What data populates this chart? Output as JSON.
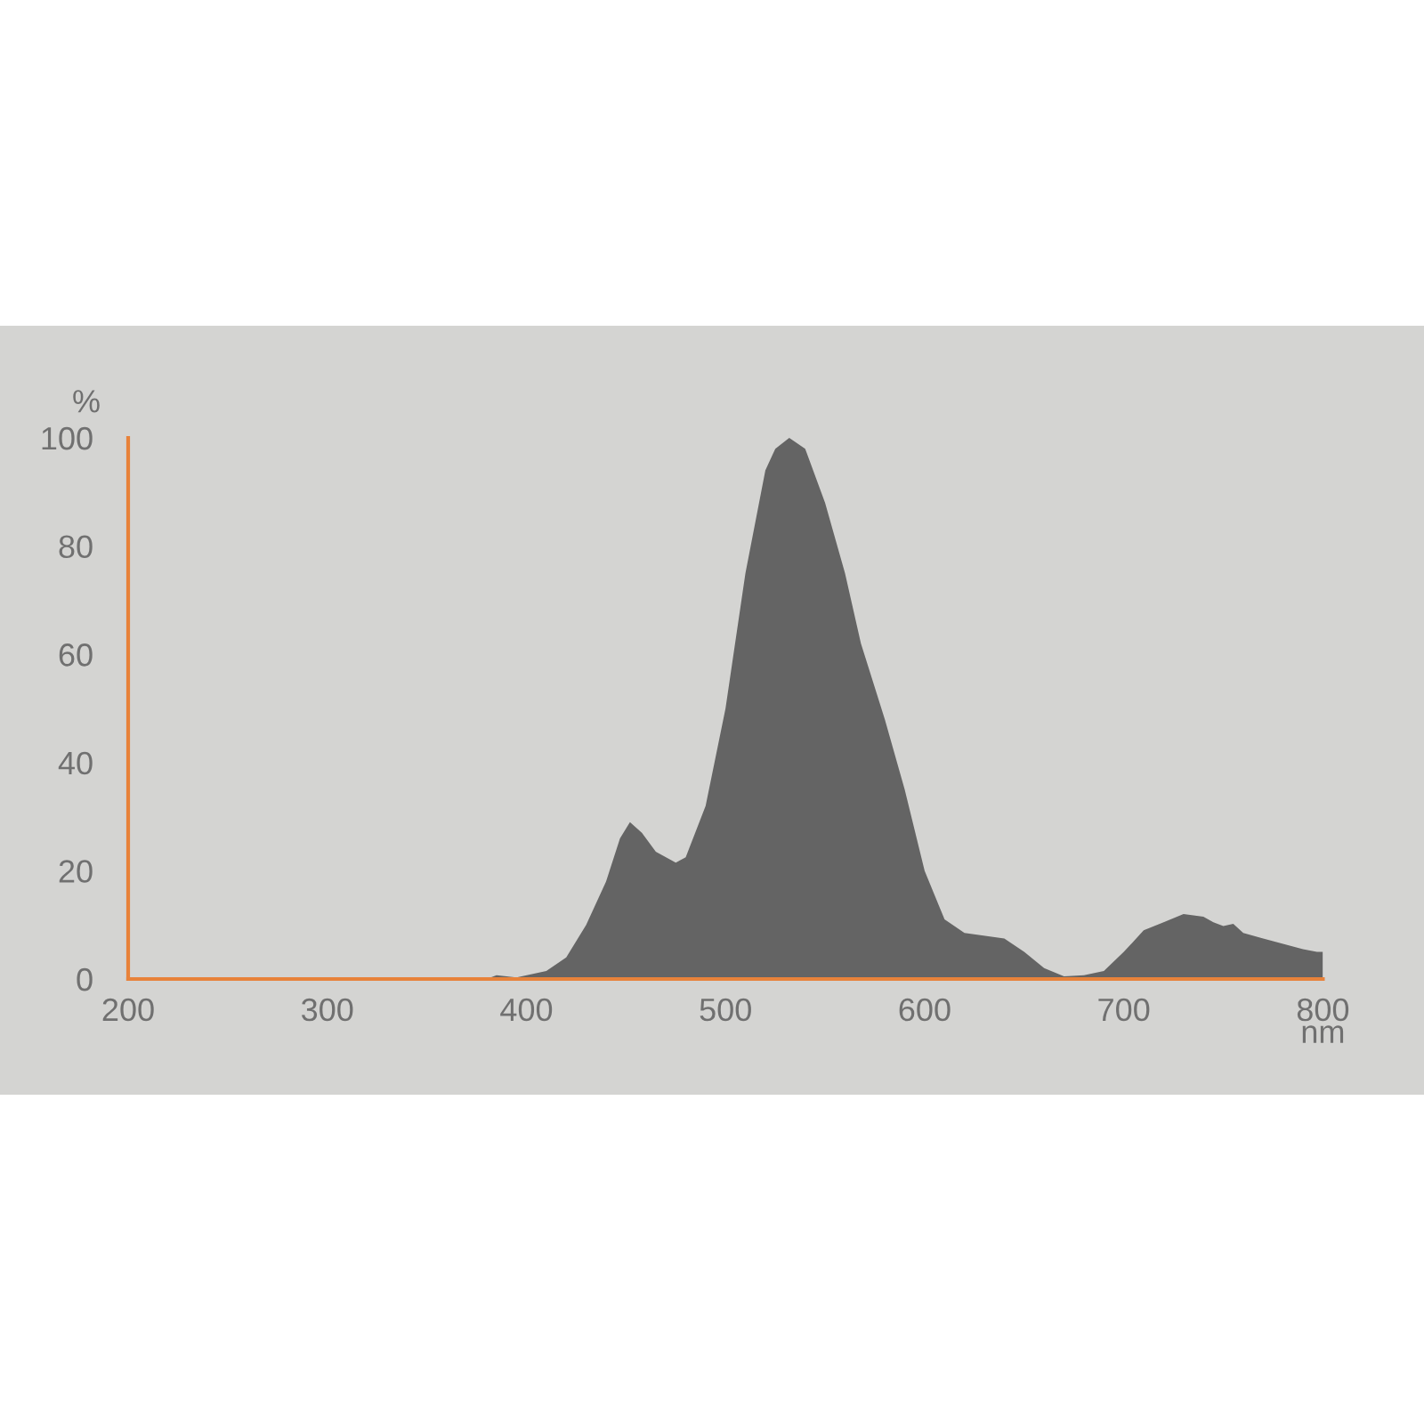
{
  "chart_data": {
    "type": "area",
    "xlabel": "nm",
    "ylabel": "%",
    "x": [
      380,
      385,
      395,
      410,
      420,
      430,
      440,
      447,
      452,
      458,
      465,
      475,
      480,
      490,
      500,
      510,
      520,
      525,
      532,
      540,
      550,
      560,
      568,
      580,
      590,
      600,
      610,
      620,
      640,
      650,
      660,
      670,
      680,
      690,
      700,
      710,
      720,
      730,
      740,
      745,
      750,
      755,
      760,
      770,
      780,
      790,
      797,
      800
    ],
    "series": [
      {
        "color": "#646464",
        "values": [
          0,
          0.7,
          0.3,
          1.5,
          4,
          10,
          18,
          26,
          29,
          27,
          23.5,
          21.5,
          22.5,
          32,
          50,
          75,
          94,
          98,
          100,
          98,
          88,
          75,
          62,
          48,
          35,
          20,
          11,
          8.5,
          7.5,
          5,
          2,
          0.5,
          0.7,
          1.5,
          5,
          9,
          10.5,
          12,
          11.5,
          10.5,
          9.8,
          10.2,
          8.5,
          7.5,
          6.5,
          5.5,
          5,
          5
        ]
      }
    ],
    "xlim": [
      200,
      800
    ],
    "ylim": [
      0,
      100
    ],
    "xticks": [
      200,
      300,
      400,
      500,
      600,
      700,
      800
    ],
    "yticks": [
      0,
      20,
      40,
      60,
      80,
      100
    ],
    "grid": false,
    "legend": false
  }
}
